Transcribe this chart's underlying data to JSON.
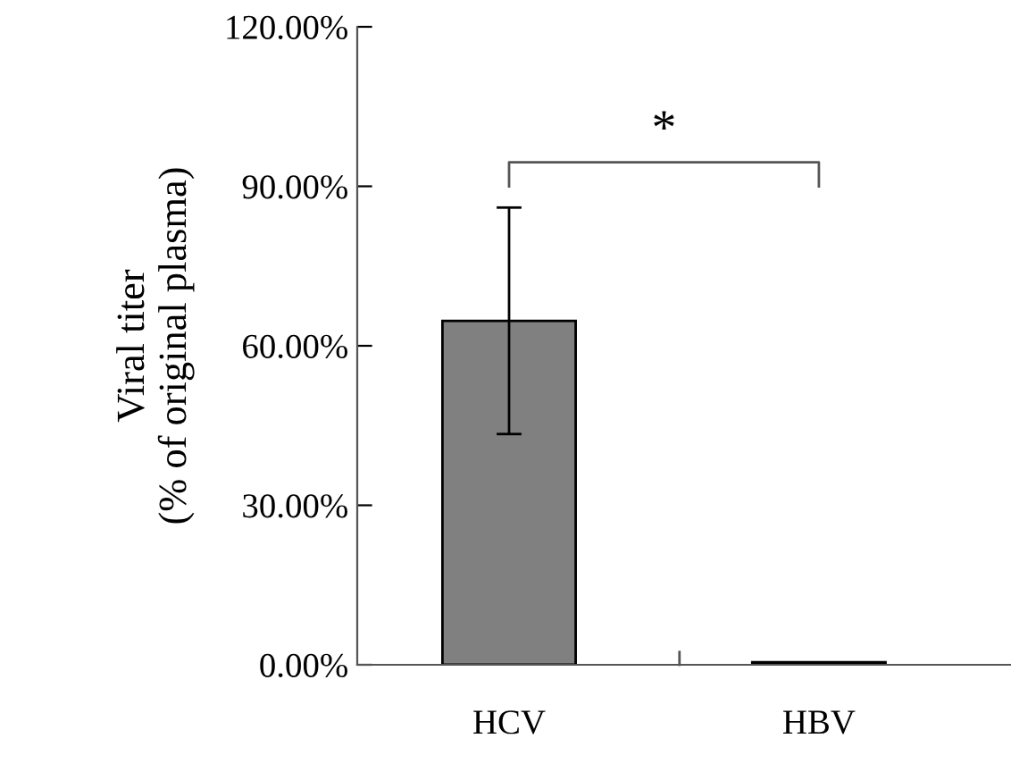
{
  "chart_data": {
    "type": "bar",
    "ylabel": "Viral titer\n(% of original plasma)",
    "categories": [
      "HCV",
      "HBV"
    ],
    "values": [
      64.7,
      0.5
    ],
    "errors": [
      21.3,
      null
    ],
    "color": "#808080",
    "ylim": [
      0,
      120
    ],
    "yticks": [
      {
        "value": 0,
        "label": "0.00%"
      },
      {
        "value": 30,
        "label": "30.00%"
      },
      {
        "value": 60,
        "label": "60.00%"
      },
      {
        "value": 90,
        "label": "90.00%"
      },
      {
        "value": 120,
        "label": "120.00%"
      }
    ],
    "grid": false,
    "legend": false,
    "annotations": [
      "*"
    ]
  }
}
